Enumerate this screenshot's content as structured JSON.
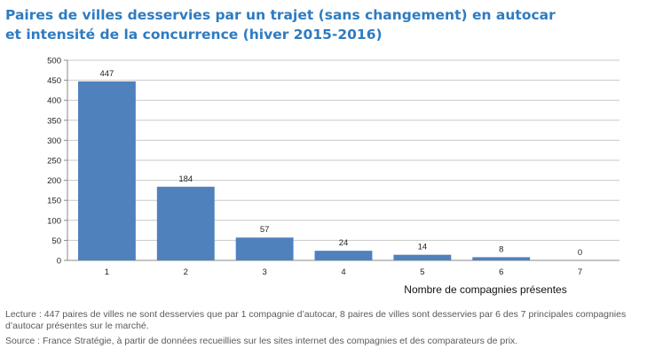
{
  "title_lines": [
    "Paires de villes desservies par un trajet (sans changement) en autocar",
    "et intensité de la concurrence (hiver 2015-2016)"
  ],
  "colors": {
    "title": "#2e7bc1",
    "bar": "#4f81bd",
    "grid": "#c8c8c8"
  },
  "chart_data": {
    "type": "bar",
    "title": "",
    "xlabel": "Nombre de compagnies présentes",
    "ylabel": "",
    "categories": [
      "1",
      "2",
      "3",
      "4",
      "5",
      "6",
      "7"
    ],
    "values": [
      447,
      184,
      57,
      24,
      14,
      8,
      0
    ],
    "data_labels": [
      "447",
      "184",
      "57",
      "24",
      "14",
      "8",
      "0"
    ],
    "ylim": [
      0,
      500
    ],
    "yticks": [
      0,
      50,
      100,
      150,
      200,
      250,
      300,
      350,
      400,
      450,
      500
    ],
    "grid": true,
    "legend": "none"
  },
  "notes": {
    "lecture": "Lecture : 447 paires de villes ne sont desservies que par 1 compagnie d’autocar, 8 paires de villes sont desservies par 6 des 7 principales compagnies d’autocar présentes sur le marché.",
    "source": "Source : France Stratégie, à partir de données recueillies sur les sites internet des compagnies et des comparateurs de prix."
  }
}
